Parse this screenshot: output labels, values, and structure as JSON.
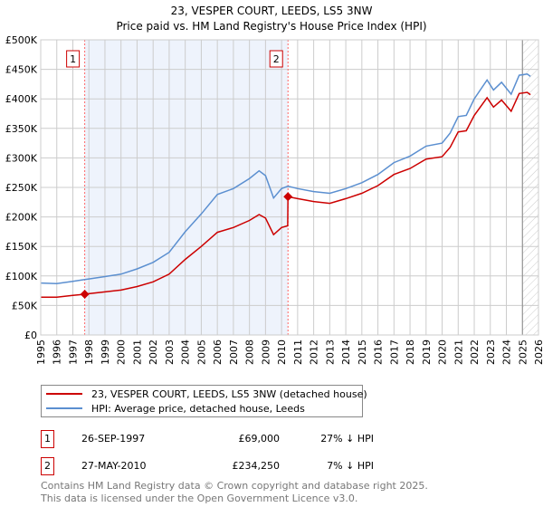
{
  "chart_data": {
    "type": "line",
    "title": "23, VESPER COURT, LEEDS, LS5 3NW",
    "subtitle": "Price paid vs. HM Land Registry's House Price Index (HPI)",
    "xlim": [
      1995,
      2026
    ],
    "ylim": [
      0,
      500000
    ],
    "x_ticks": [
      "1995",
      "1996",
      "1997",
      "1998",
      "1999",
      "2000",
      "2001",
      "2002",
      "2003",
      "2004",
      "2005",
      "2006",
      "2007",
      "2008",
      "2009",
      "2010",
      "2011",
      "2012",
      "2013",
      "2014",
      "2015",
      "2016",
      "2017",
      "2018",
      "2019",
      "2020",
      "2021",
      "2022",
      "2023",
      "2024",
      "2025",
      "2026"
    ],
    "y_ticks": [
      {
        "v": 0,
        "label": "£0"
      },
      {
        "v": 50000,
        "label": "£50K"
      },
      {
        "v": 100000,
        "label": "£100K"
      },
      {
        "v": 150000,
        "label": "£150K"
      },
      {
        "v": 200000,
        "label": "£200K"
      },
      {
        "v": 250000,
        "label": "£250K"
      },
      {
        "v": 300000,
        "label": "£300K"
      },
      {
        "v": 350000,
        "label": "£350K"
      },
      {
        "v": 400000,
        "label": "£400K"
      },
      {
        "v": 450000,
        "label": "£450K"
      },
      {
        "v": 500000,
        "label": "£500K"
      }
    ],
    "grid": true,
    "shaded_period": [
      1997.74,
      2010.4
    ],
    "forecast_hatch_from": 2025.0,
    "series": [
      {
        "name": "23, VESPER COURT, LEEDS, LS5 3NW (detached house)",
        "color": "#cc0000",
        "x": [
          1995,
          1996,
          1997,
          1997.74,
          1998,
          1999,
          2000,
          2001,
          2002,
          2003,
          2004,
          2005,
          2006,
          2007,
          2008,
          2008.6,
          2009,
          2009.5,
          2010,
          2010.38,
          2010.4,
          2011,
          2012,
          2013,
          2014,
          2015,
          2016,
          2017,
          2018,
          2019,
          2020,
          2020.5,
          2021,
          2021.5,
          2022,
          2022.8,
          2023.2,
          2023.7,
          2024.3,
          2024.8,
          2025.3,
          2025.5
        ],
        "y": [
          64000,
          64000,
          67000,
          69000,
          70000,
          73000,
          76000,
          82000,
          90000,
          103000,
          128000,
          150000,
          174000,
          182000,
          194000,
          204000,
          198000,
          170000,
          182000,
          185000,
          234250,
          231000,
          226000,
          223000,
          231000,
          240000,
          253000,
          272000,
          282000,
          298000,
          302000,
          318000,
          344000,
          346000,
          372000,
          402000,
          386000,
          398000,
          379000,
          409000,
          411000,
          407000
        ]
      },
      {
        "name": "HPI: Average price, detached house, Leeds",
        "color": "#5b8fd0",
        "x": [
          1995,
          1996,
          1997,
          1997.74,
          1998,
          1999,
          2000,
          2001,
          2002,
          2003,
          2004,
          2005,
          2006,
          2007,
          2008,
          2008.6,
          2009,
          2009.5,
          2010,
          2010.4,
          2011,
          2012,
          2013,
          2014,
          2015,
          2016,
          2017,
          2018,
          2019,
          2020,
          2020.5,
          2021,
          2021.5,
          2022,
          2022.8,
          2023.2,
          2023.7,
          2024.3,
          2024.8,
          2025.3,
          2025.5
        ],
        "y": [
          88000,
          87000,
          91000,
          94000,
          95000,
          99000,
          103000,
          112000,
          123000,
          140000,
          175000,
          205000,
          238000,
          248000,
          265000,
          278000,
          270000,
          232000,
          248000,
          252000,
          248000,
          243000,
          240000,
          248000,
          258000,
          272000,
          292000,
          303000,
          320000,
          325000,
          342000,
          370000,
          372000,
          400000,
          432000,
          415000,
          428000,
          408000,
          440000,
          442000,
          438000
        ]
      }
    ],
    "annotations": [
      {
        "label": "1",
        "x": 1997.74,
        "y": 69000
      },
      {
        "label": "2",
        "x": 2010.4,
        "y": 234250
      }
    ]
  },
  "transactions": [
    {
      "num": "1",
      "date": "26-SEP-1997",
      "price": "£69,000",
      "hpi": "27% ↓ HPI"
    },
    {
      "num": "2",
      "date": "27-MAY-2010",
      "price": "£234,250",
      "hpi": "7% ↓ HPI"
    }
  ],
  "footer": {
    "line1": "Contains HM Land Registry data © Crown copyright and database right 2025.",
    "line2": "This data is licensed under the Open Government Licence v3.0."
  }
}
